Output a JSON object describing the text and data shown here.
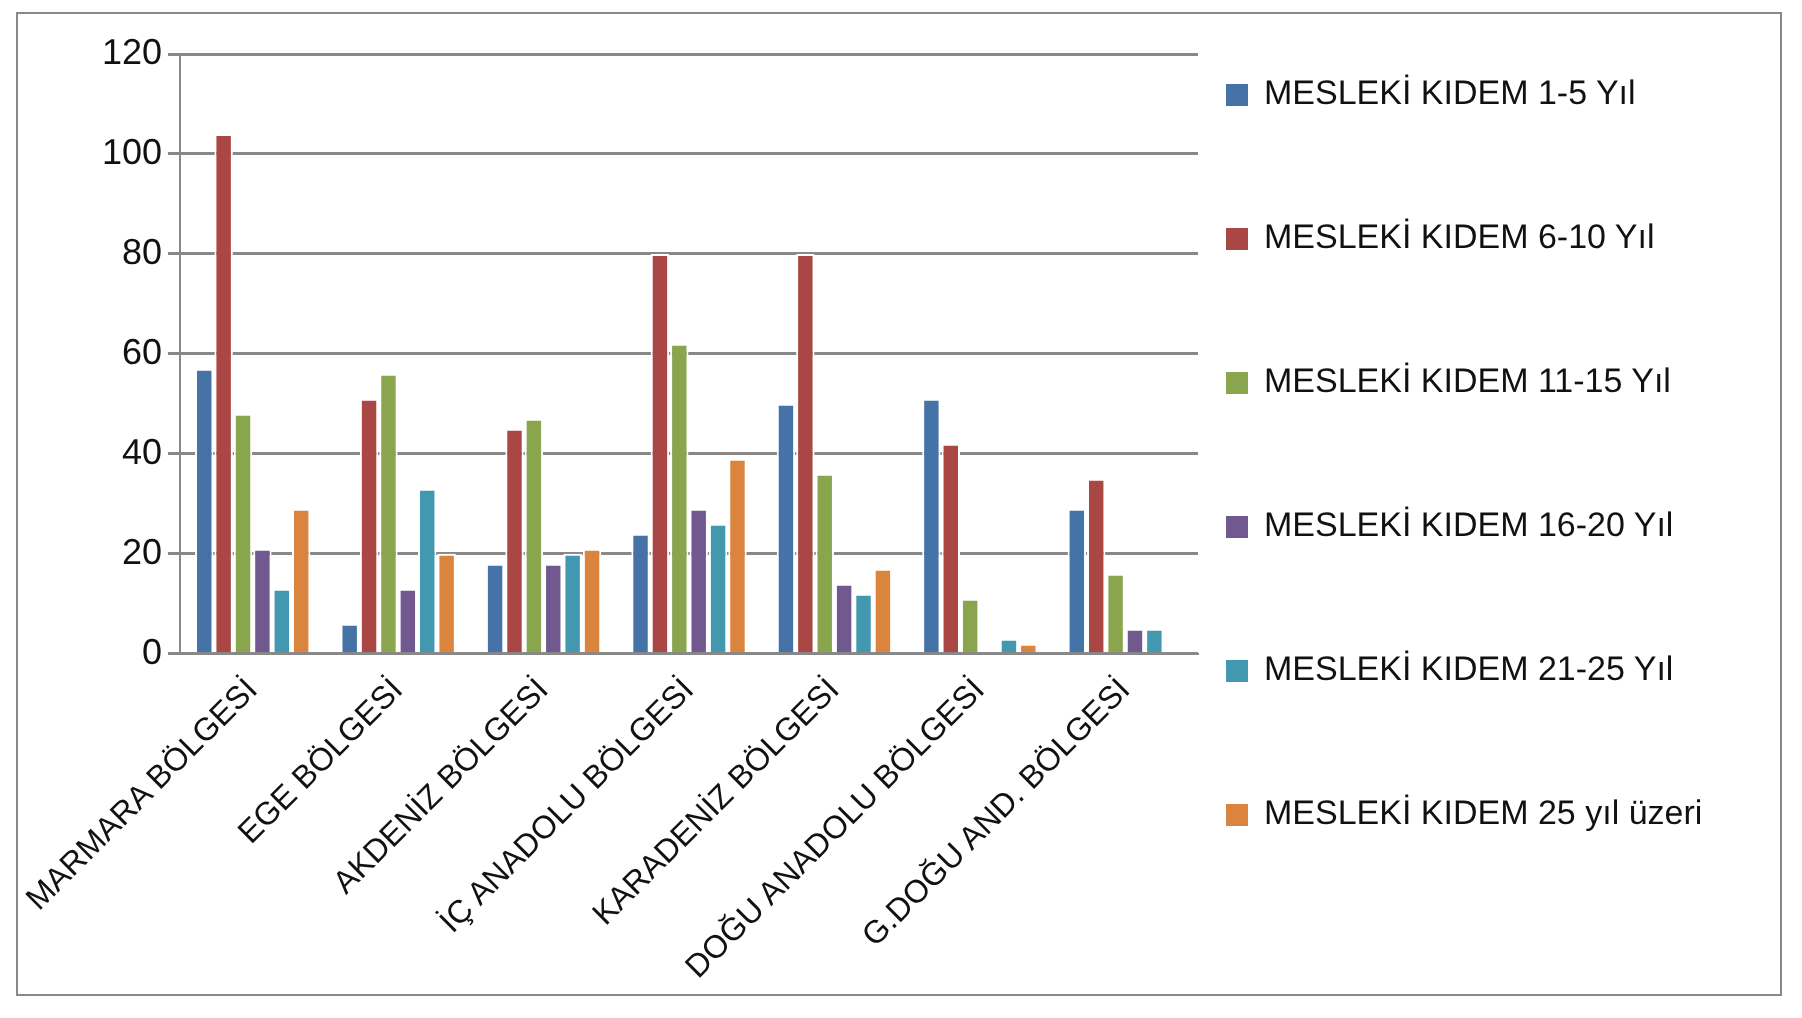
{
  "chart_data": {
    "type": "bar",
    "categories": [
      "MARMARA BÖLGESİ",
      "EGE BÖLGESİ",
      "AKDENİZ BÖLGESİ",
      "İÇ ANADOLU BÖLGESİ",
      "KARADENİZ BÖLGESİ",
      "DOĞU ANADOLU BÖLGESİ",
      "G.DOĞU AND. BÖLGESİ"
    ],
    "series": [
      {
        "name": "MESLEKİ KIDEM 1-5 Yıl",
        "color": "#4572a7",
        "values": [
          57,
          6,
          18,
          24,
          50,
          51,
          29
        ]
      },
      {
        "name": "MESLEKİ KIDEM 6-10 Yıl",
        "color": "#aa4643",
        "values": [
          104,
          51,
          45,
          80,
          80,
          42,
          35
        ]
      },
      {
        "name": "MESLEKİ KIDEM 11-15 Yıl",
        "color": "#89a54e",
        "values": [
          48,
          56,
          47,
          62,
          36,
          11,
          16
        ]
      },
      {
        "name": "MESLEKİ KIDEM 16-20 Yıl",
        "color": "#71588f",
        "values": [
          21,
          13,
          18,
          29,
          14,
          0,
          5
        ]
      },
      {
        "name": "MESLEKİ KIDEM 21-25 Yıl",
        "color": "#4198af",
        "values": [
          13,
          33,
          20,
          26,
          12,
          3,
          5
        ]
      },
      {
        "name": "MESLEKİ KIDEM 25 yıl üzeri",
        "color": "#db843d",
        "values": [
          29,
          20,
          21,
          39,
          17,
          2,
          0
        ]
      }
    ],
    "ylim": [
      0,
      120
    ],
    "yticks": [
      0,
      20,
      40,
      60,
      80,
      100,
      120
    ],
    "grid": "y",
    "legend": "right"
  }
}
